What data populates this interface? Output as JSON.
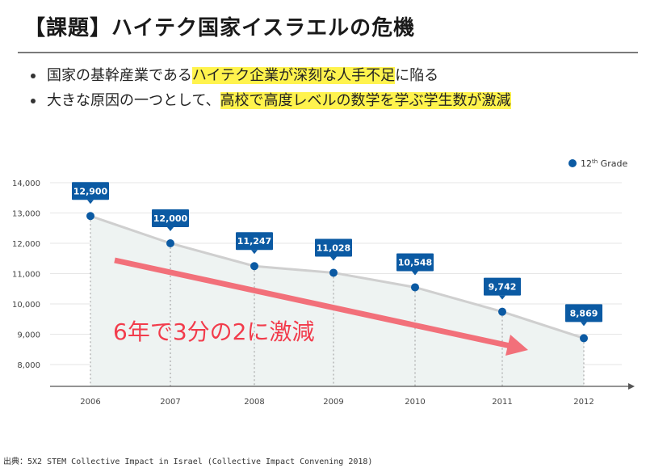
{
  "slide": {
    "title": "【課題】ハイテク国家イスラエルの危機",
    "bullets": [
      {
        "parts": [
          {
            "text": "国家の基幹産業である",
            "highlight": false
          },
          {
            "text": "ハイテク企業が深刻な人手不足",
            "highlight": true
          },
          {
            "text": "に陥る",
            "highlight": false
          }
        ]
      },
      {
        "parts": [
          {
            "text": "大きな原因の一つとして、",
            "highlight": false
          },
          {
            "text": "高校で高度レベルの数学を学ぶ学生数が激減",
            "highlight": true
          }
        ]
      }
    ],
    "source": "出典：5X2 STEM Collective Impact in Israel (Collective Impact Convening 2018)",
    "colors": {
      "highlight": "#fff34d",
      "series": "#0b5aa3",
      "line": "#cfcfcf",
      "area": "#eef3f2",
      "arrow": "#f2707a",
      "annotation": "#f23c4c"
    }
  },
  "chart_data": {
    "type": "line",
    "categories": [
      "2006",
      "2007",
      "2008",
      "2009",
      "2010",
      "2011",
      "2012"
    ],
    "series": [
      {
        "name": "12th Grade",
        "values": [
          12900,
          12000,
          11247,
          11028,
          10548,
          9742,
          8869
        ]
      }
    ],
    "data_labels": [
      "12,900",
      "12,000",
      "11,247",
      "11,028",
      "10,548",
      "9,742",
      "8,869"
    ],
    "legend": {
      "label_prefix": "12",
      "label_sup": "th",
      "label_suffix": " Grade",
      "position": "top-right"
    },
    "yticks": [
      "8,000",
      "9,000",
      "10,000",
      "11,000",
      "12,000",
      "13,000",
      "14,000"
    ],
    "ylim": [
      7000,
      14000
    ],
    "annotation": "6年で3分の2に激減"
  }
}
